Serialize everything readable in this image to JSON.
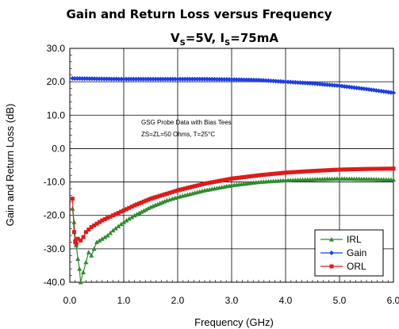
{
  "chart_data": {
    "type": "line",
    "title": "Gain and Return Loss versus Frequency",
    "subtitle": {
      "v_sym": "V",
      "v_sub": "S",
      "v_val": "=5V, I",
      "i_sub": "S",
      "i_val": "=75mA"
    },
    "xlabel": "Frequency (GHz)",
    "ylabel": "Gain and Return Loss (dB)",
    "xlim": [
      0,
      6
    ],
    "ylim": [
      -40,
      30
    ],
    "xticks": [
      "0.0",
      "1.0",
      "2.0",
      "3.0",
      "4.0",
      "5.0",
      "6.0"
    ],
    "yticks": [
      "30.0",
      "20.0",
      "10.0",
      "0.0",
      "-10.0",
      "-20.0",
      "-30.0",
      "-40.0"
    ],
    "grid": true,
    "legend_position": "bottom-right",
    "annotations": [
      "GSG Probe Data with Bias Tees",
      "ZS=ZL=50 Ohms, T=25°C"
    ],
    "series": [
      {
        "name": "IRL",
        "color": "#2e8b2e",
        "marker": "triangle",
        "x": [
          0.05,
          0.08,
          0.1,
          0.12,
          0.15,
          0.18,
          0.2,
          0.25,
          0.3,
          0.35,
          0.4,
          0.45,
          0.5,
          0.6,
          0.7,
          0.8,
          1.0,
          1.2,
          1.5,
          1.8,
          2.0,
          2.5,
          3.0,
          3.5,
          4.0,
          4.5,
          5.0,
          5.5,
          6.0
        ],
        "y": [
          -18,
          -22,
          -27,
          -29,
          -33,
          -36,
          -40,
          -37,
          -34,
          -31,
          -32,
          -30,
          -28,
          -27,
          -26,
          -24.5,
          -22,
          -20,
          -17.5,
          -15.5,
          -14.5,
          -12.5,
          -11,
          -10,
          -9.5,
          -9.2,
          -9.0,
          -9.1,
          -9.3
        ]
      },
      {
        "name": "Gain",
        "color": "#1f3de0",
        "marker": "diamond",
        "x": [
          0.05,
          0.5,
          1.0,
          1.5,
          2.0,
          2.5,
          3.0,
          3.5,
          4.0,
          4.5,
          5.0,
          5.5,
          6.0
        ],
        "y": [
          21.0,
          20.9,
          20.8,
          20.8,
          20.8,
          20.8,
          20.7,
          20.5,
          20.0,
          19.5,
          18.8,
          17.8,
          16.7
        ]
      },
      {
        "name": "ORL",
        "color": "#e01a1a",
        "marker": "square",
        "x": [
          0.05,
          0.08,
          0.1,
          0.12,
          0.15,
          0.2,
          0.25,
          0.3,
          0.4,
          0.5,
          0.6,
          0.8,
          1.0,
          1.2,
          1.5,
          1.8,
          2.0,
          2.5,
          3.0,
          3.5,
          4.0,
          4.5,
          5.0,
          5.5,
          6.0
        ],
        "y": [
          -15,
          -25,
          -28,
          -28.5,
          -27,
          -27.5,
          -26.5,
          -25,
          -23.5,
          -22.5,
          -21.5,
          -20,
          -18.5,
          -17,
          -15,
          -13.5,
          -12.5,
          -10.5,
          -9,
          -8,
          -7.2,
          -6.7,
          -6.3,
          -6.1,
          -6.0
        ]
      }
    ]
  }
}
